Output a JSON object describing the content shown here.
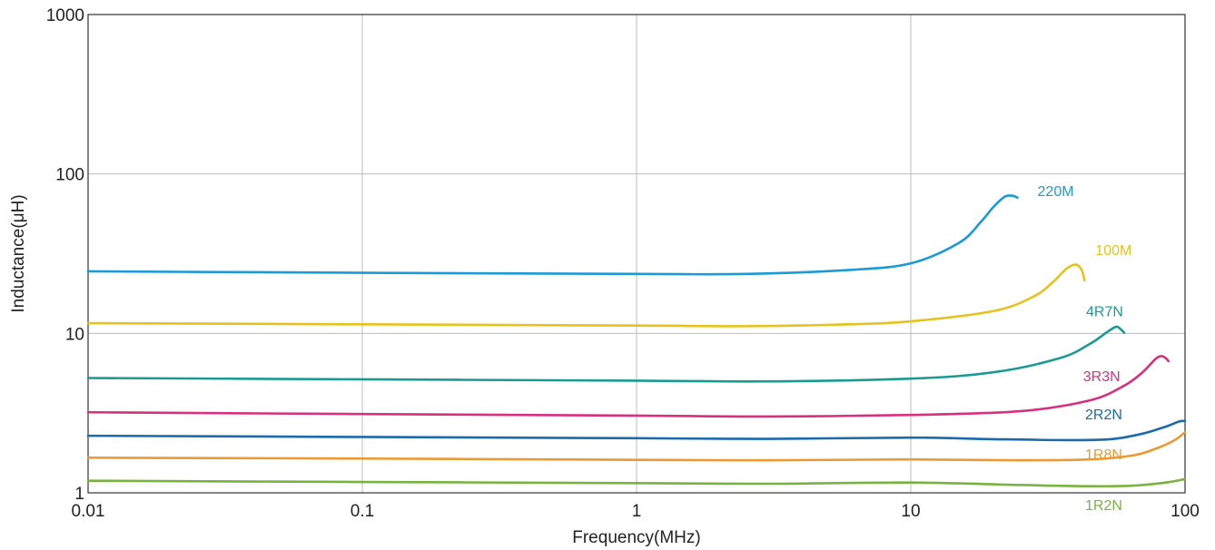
{
  "chart_data": {
    "type": "line",
    "xlabel": "Frequency(MHz)",
    "ylabel": "Inductance(μH)",
    "x_scale": "log",
    "y_scale": "log",
    "xlim": [
      0.01,
      100
    ],
    "ylim": [
      1,
      1000
    ],
    "grid": true,
    "x_ticks": [
      {
        "value": 0.01,
        "label": "0.01"
      },
      {
        "value": 0.1,
        "label": "0.1"
      },
      {
        "value": 1,
        "label": "1"
      },
      {
        "value": 10,
        "label": "10"
      },
      {
        "value": 100,
        "label": "100"
      }
    ],
    "y_ticks": [
      {
        "value": 1,
        "label": "1"
      },
      {
        "value": 10,
        "label": "10"
      },
      {
        "value": 100,
        "label": "100"
      },
      {
        "value": 1000,
        "label": "1000"
      }
    ],
    "series": [
      {
        "name": "220M",
        "color": "#1a9ad6",
        "points": [
          [
            0.01,
            24.5
          ],
          [
            0.1,
            24.0
          ],
          [
            1,
            23.6
          ],
          [
            2.5,
            23.6
          ],
          [
            6,
            25.0
          ],
          [
            10,
            27.5
          ],
          [
            15,
            37
          ],
          [
            18,
            50
          ],
          [
            20,
            62
          ],
          [
            22,
            72
          ],
          [
            23.5,
            73
          ],
          [
            24.5,
            71
          ]
        ]
      },
      {
        "name": "100M",
        "color": "#e6c21c",
        "points": [
          [
            0.01,
            11.6
          ],
          [
            0.1,
            11.4
          ],
          [
            1,
            11.2
          ],
          [
            2.5,
            11.1
          ],
          [
            6,
            11.4
          ],
          [
            10,
            11.9
          ],
          [
            20,
            13.8
          ],
          [
            28,
            17
          ],
          [
            33,
            21
          ],
          [
            37,
            25.5
          ],
          [
            40,
            27
          ],
          [
            42,
            25
          ],
          [
            43,
            21.5
          ]
        ]
      },
      {
        "name": "4R7N",
        "color": "#1a9b92",
        "points": [
          [
            0.01,
            5.25
          ],
          [
            0.1,
            5.15
          ],
          [
            1,
            5.05
          ],
          [
            3,
            5.0
          ],
          [
            10,
            5.2
          ],
          [
            20,
            5.7
          ],
          [
            35,
            7.0
          ],
          [
            45,
            8.6
          ],
          [
            52,
            10.2
          ],
          [
            56,
            11.0
          ],
          [
            58,
            10.7
          ],
          [
            60,
            10.1
          ]
        ]
      },
      {
        "name": "3R3N",
        "color": "#d6307e",
        "points": [
          [
            0.01,
            3.2
          ],
          [
            0.1,
            3.12
          ],
          [
            1,
            3.05
          ],
          [
            3,
            3.01
          ],
          [
            10,
            3.08
          ],
          [
            25,
            3.25
          ],
          [
            45,
            3.8
          ],
          [
            60,
            4.7
          ],
          [
            70,
            5.7
          ],
          [
            78,
            6.9
          ],
          [
            82,
            7.2
          ],
          [
            85,
            7.0
          ],
          [
            87,
            6.7
          ]
        ]
      },
      {
        "name": "2R2N",
        "color": "#1b6aab",
        "points": [
          [
            0.01,
            2.28
          ],
          [
            0.1,
            2.24
          ],
          [
            1,
            2.2
          ],
          [
            3,
            2.18
          ],
          [
            10,
            2.22
          ],
          [
            20,
            2.17
          ],
          [
            40,
            2.14
          ],
          [
            55,
            2.18
          ],
          [
            70,
            2.35
          ],
          [
            85,
            2.6
          ],
          [
            95,
            2.8
          ],
          [
            100,
            2.82
          ]
        ]
      },
      {
        "name": "1R8N",
        "color": "#eb9a32",
        "points": [
          [
            0.01,
            1.66
          ],
          [
            0.1,
            1.64
          ],
          [
            1,
            1.61
          ],
          [
            3,
            1.6
          ],
          [
            10,
            1.62
          ],
          [
            25,
            1.6
          ],
          [
            45,
            1.62
          ],
          [
            65,
            1.72
          ],
          [
            80,
            1.92
          ],
          [
            92,
            2.15
          ],
          [
            100,
            2.4
          ]
        ]
      },
      {
        "name": "1R2N",
        "color": "#78b340",
        "points": [
          [
            0.01,
            1.19
          ],
          [
            0.1,
            1.17
          ],
          [
            1,
            1.15
          ],
          [
            3,
            1.14
          ],
          [
            10,
            1.16
          ],
          [
            25,
            1.12
          ],
          [
            45,
            1.1
          ],
          [
            65,
            1.11
          ],
          [
            85,
            1.16
          ],
          [
            100,
            1.22
          ]
        ]
      }
    ]
  }
}
